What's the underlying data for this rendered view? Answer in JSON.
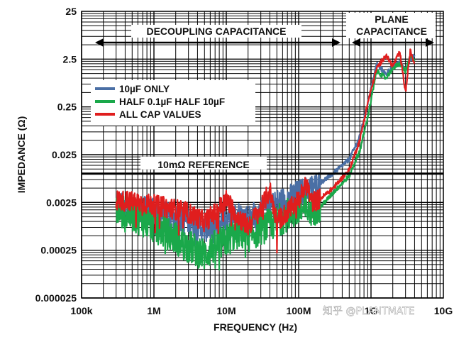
{
  "chart_data": {
    "type": "line",
    "xlabel": "FREQUENCY (Hz)",
    "ylabel": "IMPEDANCE (Ω)",
    "x_scale": "log",
    "y_scale": "log",
    "xlim": [
      100000,
      10000000000
    ],
    "ylim": [
      2.5e-05,
      25
    ],
    "x_ticks": [
      100000,
      1000000,
      10000000,
      100000000,
      1000000000,
      10000000000
    ],
    "x_tick_labels": [
      "100k",
      "1M",
      "10M",
      "100M",
      "1G",
      "10G"
    ],
    "y_ticks": [
      25,
      2.5,
      0.25,
      0.025,
      0.0025,
      0.00025,
      2.5e-05
    ],
    "y_tick_labels": [
      "25",
      "2.5",
      "0.25",
      "0.025",
      "0.0025",
      "0.00025",
      "0.000025"
    ],
    "grid": true,
    "series": [
      {
        "name": "10µF ONLY",
        "color": "#4a6fa5",
        "x": [
          300000,
          600000,
          1000000,
          2000000,
          3000000,
          5000000,
          7000000,
          10000000,
          15000000,
          20000000,
          30000000,
          50000000,
          70000000,
          100000000,
          150000000,
          200000000,
          300000000,
          500000000,
          700000000,
          900000000,
          1200000000,
          1600000000,
          2000000000,
          2500000000,
          3000000000,
          3500000000,
          4000000000
        ],
        "y": [
          0.0022,
          0.0019,
          0.0016,
          0.0012,
          0.001,
          0.0007,
          0.0008,
          0.0012,
          0.0014,
          0.0012,
          0.0016,
          0.0025,
          0.003,
          0.004,
          0.005,
          0.0065,
          0.01,
          0.02,
          0.06,
          0.3,
          2.0,
          1.2,
          1.8,
          2.2,
          1.5,
          2.5,
          3.0
        ]
      },
      {
        "name": "HALF 0.1µF HALF 10µF",
        "color": "#1aa84a",
        "x": [
          300000,
          600000,
          1000000,
          2000000,
          3000000,
          5000000,
          7000000,
          10000000,
          15000000,
          20000000,
          30000000,
          50000000,
          70000000,
          100000000,
          150000000,
          200000000,
          300000000,
          500000000,
          700000000,
          900000000,
          1200000000,
          1600000000,
          2000000000,
          2500000000,
          3000000000,
          3500000000,
          4000000000
        ],
        "y": [
          0.0018,
          0.0012,
          0.0008,
          0.00045,
          0.0003,
          0.0002,
          0.0003,
          0.0004,
          0.0006,
          0.0005,
          0.0007,
          0.001,
          0.0014,
          0.0016,
          0.0018,
          0.002,
          0.004,
          0.009,
          0.03,
          0.15,
          1.4,
          1.0,
          1.6,
          2.0,
          1.4,
          2.8,
          2.4
        ]
      },
      {
        "name": "ALL CAP VALUES",
        "color": "#e01e1e",
        "x": [
          300000,
          600000,
          1000000,
          2000000,
          3000000,
          5000000,
          7000000,
          10000000,
          15000000,
          20000000,
          30000000,
          40000000,
          50000000,
          70000000,
          100000000,
          130000000,
          150000000,
          200000000,
          300000000,
          500000000,
          700000000,
          900000000,
          1200000000,
          1600000000,
          2000000000,
          2500000000,
          3000000000,
          3500000000,
          4000000000
        ],
        "y": [
          0.0028,
          0.0025,
          0.0022,
          0.0018,
          0.0015,
          0.001,
          0.0015,
          0.0028,
          0.0012,
          0.0008,
          0.0018,
          0.0045,
          0.001,
          0.0016,
          0.0028,
          0.006,
          0.0025,
          0.003,
          0.005,
          0.012,
          0.05,
          0.3,
          1.6,
          3.0,
          1.8,
          3.5,
          0.5,
          3.8,
          2.0
        ]
      }
    ],
    "legend": {
      "placement": "middle-left",
      "entries": [
        "10µF ONLY",
        "HALF 0.1µF HALF 10µF",
        "ALL CAP VALUES"
      ]
    },
    "reference_line": {
      "label": "10mΩ REFERENCE",
      "y": 0.01
    },
    "annotations": {
      "decoupling": "DECOUPLING CAPACITANCE",
      "plane_line1": "PLANE",
      "plane_line2": "CAPACITANCE"
    }
  },
  "watermark": "知乎 @PLANTMATE"
}
